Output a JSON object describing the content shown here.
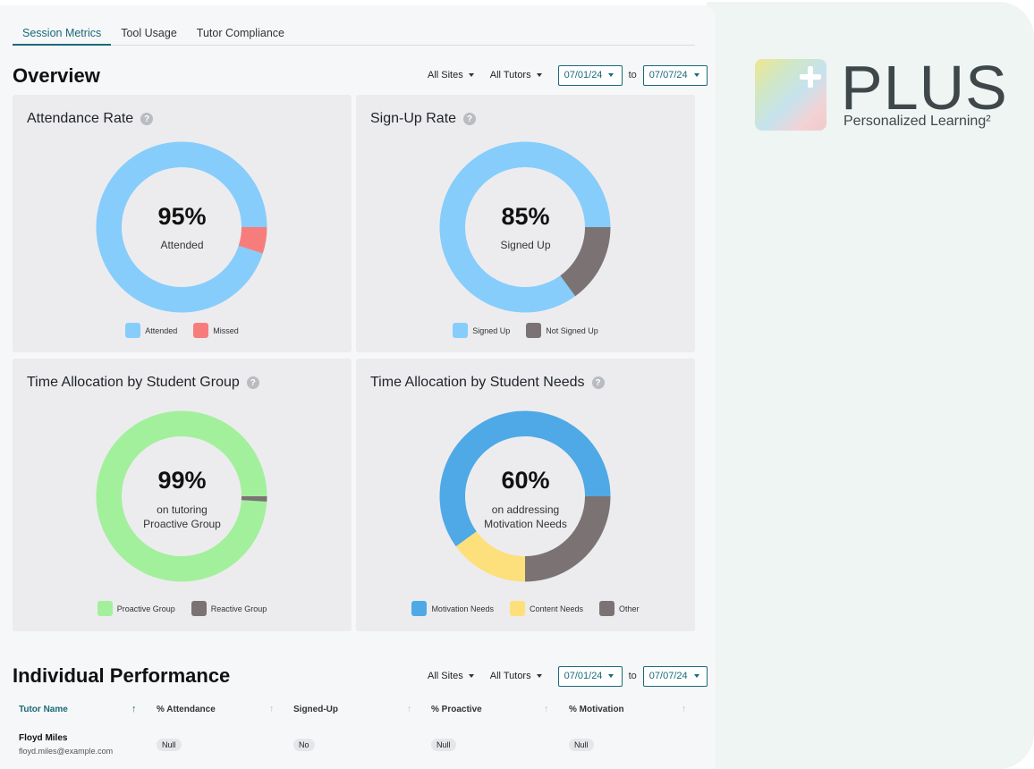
{
  "tabs": [
    "Session Metrics",
    "Tool Usage",
    "Tutor Compliance"
  ],
  "overview": {
    "title": "Overview",
    "filters": {
      "sites": "All Sites",
      "tutors": "All Tutors",
      "date_from": "07/01/24",
      "to": "to",
      "date_to": "07/07/24"
    }
  },
  "cards": {
    "attendance": {
      "title": "Attendance Rate",
      "help": "?",
      "percent": "95%",
      "label": "Attended",
      "segments": [
        {
          "name": "Attended",
          "value": 95,
          "color": "#86cdfb"
        },
        {
          "name": "Missed",
          "value": 5,
          "color": "#f77d7d"
        }
      ]
    },
    "signup": {
      "title": "Sign-Up Rate",
      "help": "?",
      "percent": "85%",
      "label": "Signed Up",
      "segments": [
        {
          "name": "Signed Up",
          "value": 85,
          "color": "#86cdfb"
        },
        {
          "name": "Not Signed Up",
          "value": 15,
          "color": "#7b7373"
        }
      ]
    },
    "group": {
      "title": "Time Allocation by Student Group",
      "help": "?",
      "percent": "99%",
      "label_line1": "on tutoring",
      "label_line2": "Proactive Group",
      "segments": [
        {
          "name": "Proactive Group",
          "value": 99,
          "color": "#a3f09c"
        },
        {
          "name": "Reactive Group",
          "value": 1,
          "color": "#7b7373"
        }
      ]
    },
    "needs": {
      "title": "Time Allocation by Student Needs",
      "help": "?",
      "percent": "60%",
      "label_line1": "on addressing",
      "label_line2": "Motivation Needs",
      "segments": [
        {
          "name": "Motivation Needs",
          "value": 60,
          "color": "#4ea9e6"
        },
        {
          "name": "Content Needs",
          "value": 15,
          "color": "#fde07b"
        },
        {
          "name": "Other",
          "value": 25,
          "color": "#7b7373"
        }
      ]
    }
  },
  "performance": {
    "title": "Individual Performance",
    "filters": {
      "sites": "All Sites",
      "tutors": "All Tutors",
      "date_from": "07/01/24",
      "to": "to",
      "date_to": "07/07/24"
    },
    "columns": [
      "Tutor Name",
      "% Attendance",
      "Signed-Up",
      "% Proactive",
      "% Motivation"
    ],
    "rows": [
      {
        "name": "Floyd Miles",
        "email": "floyd.miles@example.com",
        "attendance": "Null",
        "signed_up": "No",
        "proactive": "Null",
        "motivation": "Null"
      }
    ]
  },
  "logo": {
    "word": "PLUS",
    "subtitle": "Personalized Learning²"
  },
  "chart_data": [
    {
      "type": "pie",
      "title": "Attendance Rate",
      "categories": [
        "Attended",
        "Missed"
      ],
      "values": [
        95,
        5
      ],
      "legend": "bottom"
    },
    {
      "type": "pie",
      "title": "Sign-Up Rate",
      "categories": [
        "Signed Up",
        "Not Signed Up"
      ],
      "values": [
        85,
        15
      ],
      "legend": "bottom"
    },
    {
      "type": "pie",
      "title": "Time Allocation by Student Group",
      "categories": [
        "Proactive Group",
        "Reactive Group"
      ],
      "values": [
        99,
        1
      ],
      "legend": "bottom"
    },
    {
      "type": "pie",
      "title": "Time Allocation by Student Needs",
      "categories": [
        "Motivation Needs",
        "Content Needs",
        "Other"
      ],
      "values": [
        60,
        15,
        25
      ],
      "legend": "bottom"
    }
  ]
}
